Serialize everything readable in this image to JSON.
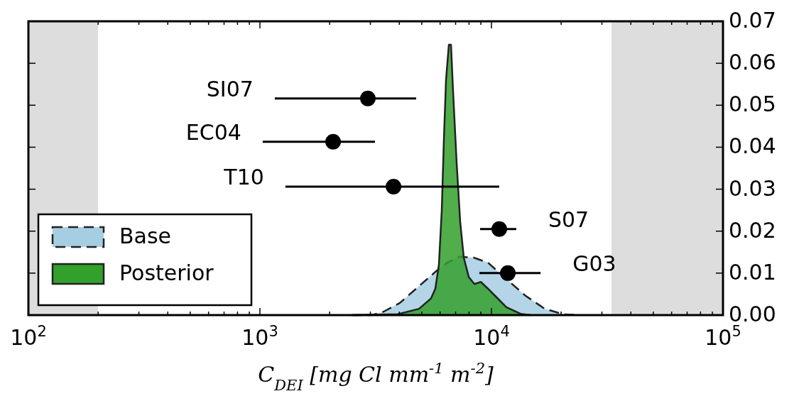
{
  "chart_data": {
    "type": "area",
    "xlabel": "C$_{DEI}$ [mg Cl mm$^{-1}$ m$^{-2}$]",
    "log": "x",
    "grid": false,
    "legend": "bottom left",
    "xlim": [
      100,
      100000
    ],
    "ylim": [
      0,
      0.07
    ],
    "xticks": [
      {
        "value": 100,
        "label": "10$^{2}$"
      },
      {
        "value": 200,
        "label": null
      },
      {
        "value": 300,
        "label": null
      },
      {
        "value": 400,
        "label": null
      },
      {
        "value": 500,
        "label": null
      },
      {
        "value": 600,
        "label": null
      },
      {
        "value": 700,
        "label": null
      },
      {
        "value": 800,
        "label": null
      },
      {
        "value": 900,
        "label": null
      },
      {
        "value": 1000,
        "label": "10$^{3}$"
      },
      {
        "value": 2000,
        "label": null
      },
      {
        "value": 3000,
        "label": null
      },
      {
        "value": 4000,
        "label": null
      },
      {
        "value": 5000,
        "label": null
      },
      {
        "value": 6000,
        "label": null
      },
      {
        "value": 7000,
        "label": null
      },
      {
        "value": 8000,
        "label": null
      },
      {
        "value": 9000,
        "label": null
      },
      {
        "value": 10000,
        "label": "10$^{4}$"
      },
      {
        "value": 20000,
        "label": null
      },
      {
        "value": 30000,
        "label": null
      },
      {
        "value": 40000,
        "label": null
      },
      {
        "value": 50000,
        "label": null
      },
      {
        "value": 60000,
        "label": null
      },
      {
        "value": 70000,
        "label": null
      },
      {
        "value": 80000,
        "label": null
      },
      {
        "value": 90000,
        "label": null
      },
      {
        "value": 100000,
        "label": "10$^{5}$"
      }
    ],
    "yticks": [
      {
        "value": 0,
        "label": "0.00"
      },
      {
        "value": 0.01,
        "label": "0.01"
      },
      {
        "value": 0.02,
        "label": "0.02"
      },
      {
        "value": 0.03,
        "label": "0.03"
      },
      {
        "value": 0.04,
        "label": "0.04"
      },
      {
        "value": 0.05,
        "label": "0.05"
      },
      {
        "value": 0.06,
        "label": "0.06"
      },
      {
        "value": 0.07,
        "label": "0.07"
      }
    ],
    "bands": [
      {
        "axis": "x",
        "from": 100,
        "to": 200,
        "color": "#dddddd"
      },
      {
        "axis": "x",
        "from": 33000,
        "to": 100000,
        "color": "#dddddd"
      }
    ],
    "series": [
      {
        "name": "Base",
        "color": "#a6cee3",
        "line_style": "dashed",
        "x": [
          2487,
          3031,
          3418,
          4021,
          4866,
          5723,
          6452,
          7278,
          8381,
          9654,
          11600,
          14040,
          16990,
          20410,
          23840
        ],
        "values": [
          0,
          0,
          0.0008,
          0.0029,
          0.0069,
          0.0103,
          0.0125,
          0.0139,
          0.0137,
          0.0125,
          0.0086,
          0.0046,
          0.0015,
          0.0002,
          0
        ]
      },
      {
        "name": "Posterior",
        "color": "#33a02c",
        "line_style": "solid",
        "x": [
          2523,
          3937,
          4866,
          5487,
          5723,
          5930,
          6100,
          6231,
          6364,
          6546,
          6687,
          6830,
          7075,
          7328,
          7592,
          7977,
          8441,
          8995,
          9654,
          10580,
          11600,
          13360,
          14750
        ],
        "values": [
          0,
          0.0002,
          0.0015,
          0.004,
          0.0063,
          0.012,
          0.0249,
          0.0418,
          0.056,
          0.0644,
          0.0644,
          0.0531,
          0.0362,
          0.0222,
          0.0137,
          0.0091,
          0.0074,
          0.0079,
          0.0063,
          0.0041,
          0.0019,
          0.0003,
          0
        ]
      },
      {
        "type": "scatter",
        "color": "#000000",
        "marker": "circle",
        "x": [
          2924,
          2070,
          3776,
          10810,
          11770
        ],
        "values": [
          0.0516,
          0.0413,
          0.0306,
          0.0205,
          0.01
        ],
        "xerrors": [
          [
            1159,
            4730
          ],
          [
            1028,
            3140
          ],
          [
            1288,
            10800
          ],
          [
            8930,
            12800
          ],
          [
            8870,
            16300
          ]
        ]
      }
    ],
    "annotations": [
      "SI07",
      "EC04",
      "T10",
      "S07",
      "G03"
    ]
  }
}
